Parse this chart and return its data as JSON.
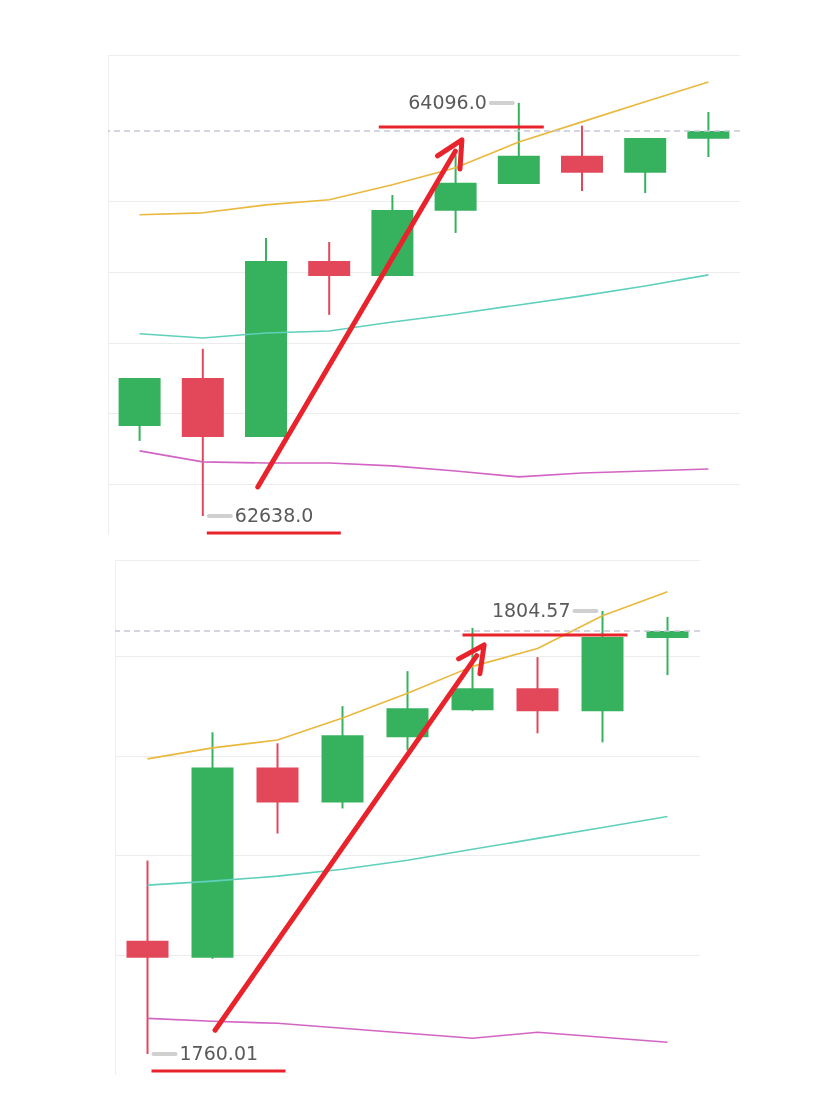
{
  "chart_data": [
    {
      "type": "candlestick",
      "categories": [
        null,
        null,
        null,
        null,
        null,
        null,
        null,
        null,
        null,
        null
      ],
      "ohlc": [
        [
          62956,
          63125,
          62903,
          63125
        ],
        [
          63125,
          63228,
          62638,
          62917
        ],
        [
          62917,
          63619,
          62917,
          63538
        ],
        [
          63538,
          63605,
          63348,
          63485
        ],
        [
          63485,
          63771,
          63485,
          63718
        ],
        [
          63715,
          63912,
          63637,
          63814
        ],
        [
          63810,
          64096,
          63810,
          63909
        ],
        [
          63909,
          64015,
          63785,
          63849
        ],
        [
          63849,
          63972,
          63778,
          63972
        ],
        [
          63969,
          64064,
          63905,
          63997
        ]
      ],
      "colors": [
        "#36b25e",
        "#e2485a",
        "#36b25e",
        "#e2485a",
        "#36b25e",
        "#36b25e",
        "#36b25e",
        "#e2485a",
        "#36b25e",
        "#36b25e"
      ],
      "series": [
        {
          "type": "line",
          "color": "#e9b83c",
          "values": [
            63701,
            63708,
            63736,
            63754,
            63807,
            63867,
            63958,
            64029,
            64100,
            64170
          ]
        },
        {
          "type": "line",
          "color": "#5fd0bb",
          "values": [
            63281,
            63266,
            63284,
            63291,
            63323,
            63351,
            63383,
            63415,
            63450,
            63489
          ]
        },
        {
          "type": "line",
          "color": "#d264c4",
          "values": [
            62868,
            62829,
            62825,
            62825,
            62815,
            62797,
            62776,
            62790,
            62797,
            62804
          ]
        }
      ],
      "ylim": [
        62571,
        64265
      ],
      "yticks": [
        {
          "value": 62750,
          "label": null
        },
        {
          "value": 63000,
          "label": null
        },
        {
          "value": 63250,
          "label": null
        },
        {
          "value": 63500,
          "label": null
        },
        {
          "value": 63750,
          "label": null
        }
      ],
      "grid": "y",
      "ref_lines": [
        {
          "axis": "y",
          "value": 63997,
          "color": "#c8c8d8",
          "line_style": "dashed"
        }
      ],
      "annotations": [
        "64096.0",
        "62638.0"
      ]
    },
    {
      "type": "candlestick",
      "categories": [
        null,
        null,
        null,
        null,
        null,
        null,
        null,
        null,
        null
      ],
      "ohlc": [
        [
          1771.4,
          1779.47,
          1760.01,
          1769.69
        ],
        [
          1769.69,
          1792.37,
          1769.59,
          1788.84
        ],
        [
          1788.84,
          1791.26,
          1782.19,
          1785.32
        ],
        [
          1785.32,
          1795.0,
          1784.71,
          1792.07
        ],
        [
          1791.87,
          1798.52,
          1790.56,
          1794.79
        ],
        [
          1794.59,
          1802.86,
          1794.49,
          1796.81
        ],
        [
          1796.81,
          1799.93,
          1792.27,
          1794.49
        ],
        [
          1794.49,
          1804.57,
          1791.36,
          1801.95
        ],
        [
          1801.85,
          1803.97,
          1798.12,
          1802.55
        ]
      ],
      "colors": [
        "#e2485a",
        "#36b25e",
        "#e2485a",
        "#36b25e",
        "#36b25e",
        "#36b25e",
        "#e2485a",
        "#36b25e",
        "#36b25e"
      ],
      "series": [
        {
          "type": "line",
          "color": "#e9b83c",
          "values": [
            1789.7,
            1790.8,
            1791.6,
            1793.8,
            1796.3,
            1799.0,
            1800.8,
            1804.1,
            1806.5
          ]
        },
        {
          "type": "line",
          "color": "#5fd0bb",
          "values": [
            1777.0,
            1777.4,
            1777.9,
            1778.6,
            1779.5,
            1780.6,
            1781.7,
            1782.8,
            1783.9
          ]
        },
        {
          "type": "line",
          "color": "#d264c4",
          "values": [
            1763.6,
            1763.3,
            1763.1,
            1762.6,
            1762.1,
            1761.6,
            1762.2,
            1761.7,
            1761.2
          ]
        }
      ],
      "ylim": [
        1757.9,
        1809.7
      ],
      "yticks": [
        {
          "value": 1770,
          "label": null
        },
        {
          "value": 1780,
          "label": null
        },
        {
          "value": 1790,
          "label": null
        },
        {
          "value": 1800,
          "label": null
        }
      ],
      "grid": "y",
      "ref_lines": [
        {
          "axis": "y",
          "value": 1802.55,
          "color": "#c8c8d8",
          "line_style": "dashed"
        }
      ],
      "annotations": [
        "1804.57",
        "1760.01"
      ]
    }
  ]
}
